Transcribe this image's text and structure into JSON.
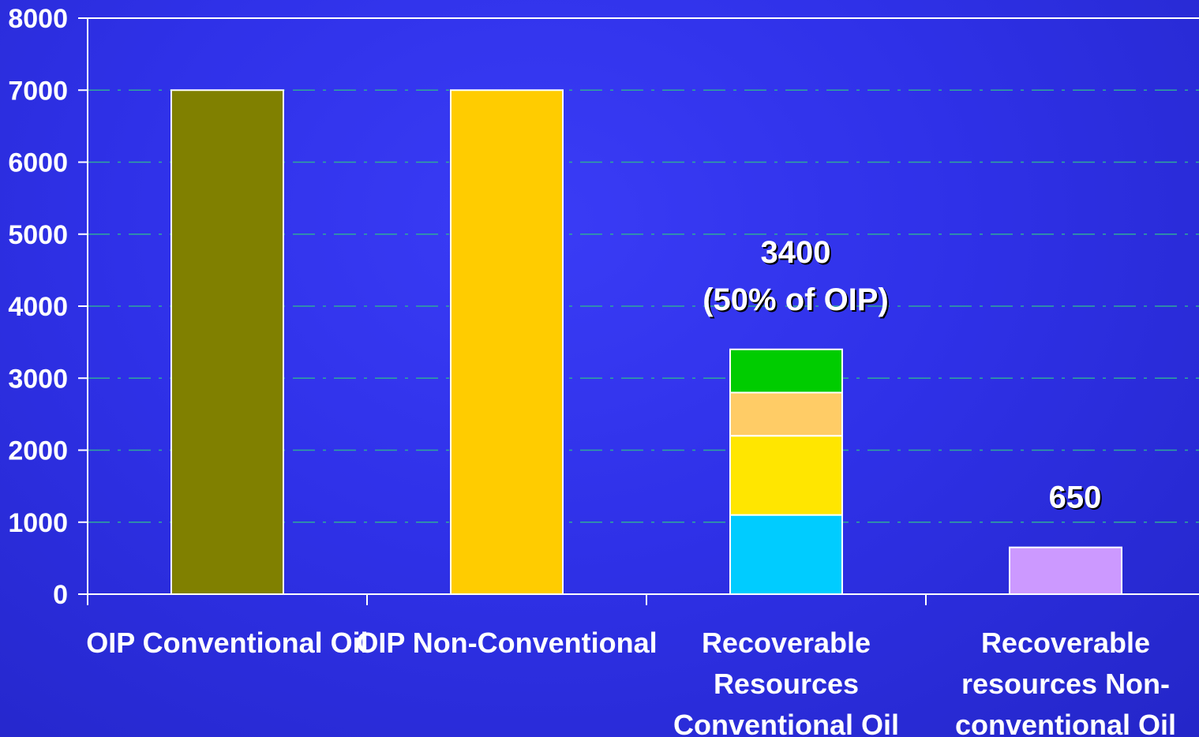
{
  "chart_data": {
    "type": "bar",
    "categories": [
      "OIP Conventional Oil",
      "OIP Non-Conventional",
      "Recoverable Resources Conventional Oil",
      "Recoverable resources Non-conventional Oil"
    ],
    "category_lines": [
      [
        "OIP Conventional Oil"
      ],
      [
        "OIP Non-Conventional"
      ],
      [
        "Recoverable",
        "Resources",
        "Conventional Oil"
      ],
      [
        "Recoverable",
        "resources Non-",
        "conventional Oil"
      ]
    ],
    "bars": [
      {
        "category": "OIP Conventional Oil",
        "segments": [
          {
            "value": 7000,
            "color": "#808000"
          }
        ]
      },
      {
        "category": "OIP Non-Conventional",
        "segments": [
          {
            "value": 7000,
            "color": "#ffcc00"
          }
        ]
      },
      {
        "category": "Recoverable Resources Conventional Oil",
        "segments": [
          {
            "value": 1100,
            "color": "#00ccff"
          },
          {
            "value": 1100,
            "color": "#ffe600"
          },
          {
            "value": 600,
            "color": "#ffcc66"
          },
          {
            "value": 600,
            "color": "#00cc00"
          }
        ]
      },
      {
        "category": "Recoverable resources Non-conventional Oil",
        "segments": [
          {
            "value": 650,
            "color": "#cc99ff"
          }
        ]
      }
    ],
    "annotations": [
      {
        "bar_index": 2,
        "lines": [
          "3400",
          "(50% of OIP)"
        ]
      },
      {
        "bar_index": 3,
        "lines": [
          "650"
        ]
      }
    ],
    "ylim": [
      0,
      8000
    ],
    "yticks": [
      0,
      1000,
      2000,
      3000,
      4000,
      5000,
      6000,
      7000,
      8000
    ],
    "grid": true,
    "title": "",
    "xlabel": "",
    "ylabel": "",
    "colors": {
      "axis": "#ffffff",
      "grid": "#2fa89a",
      "text": "#ffffff"
    }
  }
}
